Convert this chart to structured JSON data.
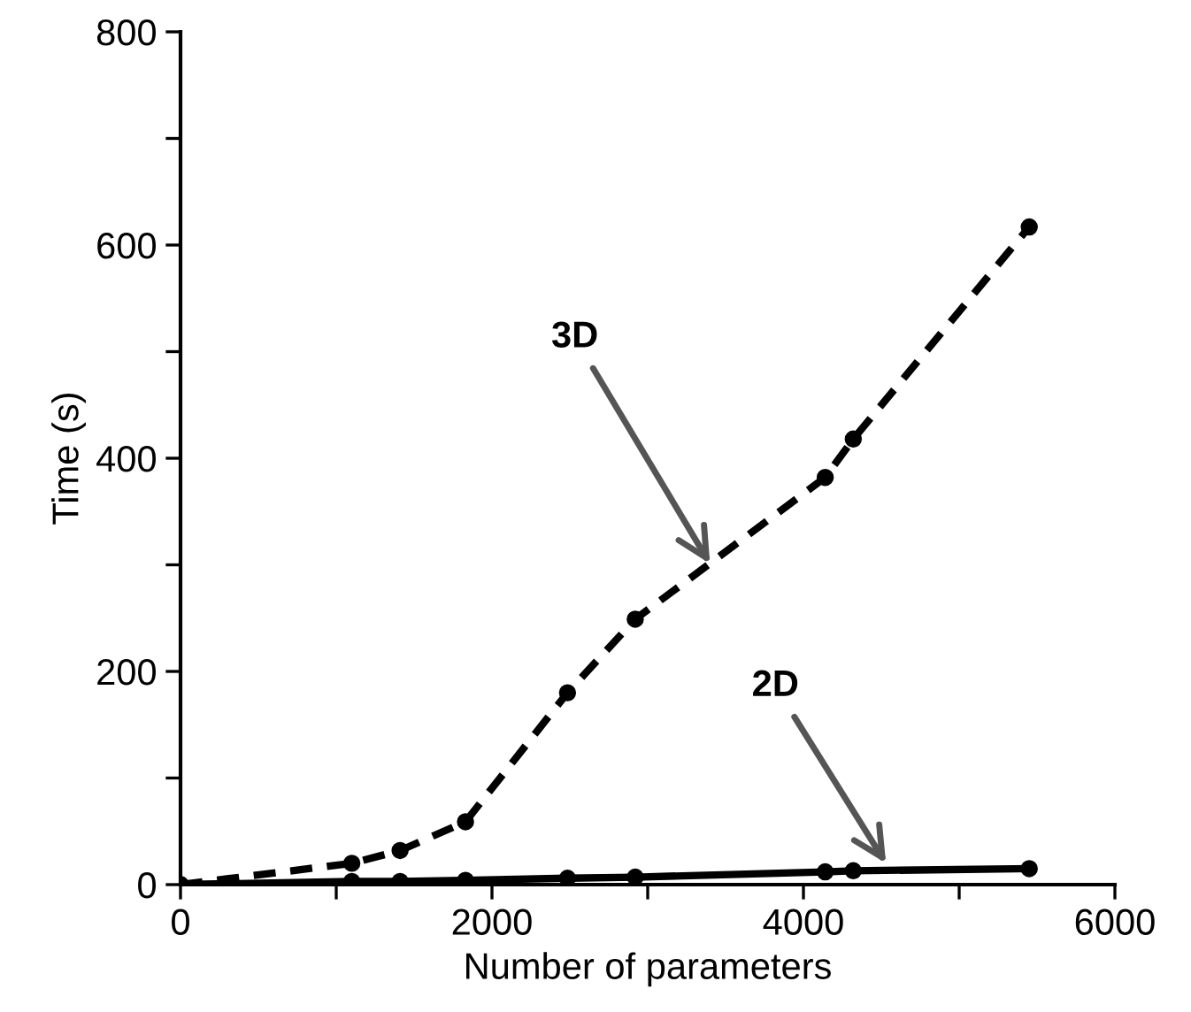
{
  "chart_data": {
    "type": "line",
    "xlabel": "Number of parameters",
    "ylabel": "Time (s)",
    "xlim": [
      0,
      6000
    ],
    "ylim": [
      0,
      800
    ],
    "xticks": [
      0,
      {
        "value": 1000,
        "label": null
      },
      2000,
      {
        "value": 3000,
        "label": null
      },
      4000,
      {
        "value": 5000,
        "label": null
      },
      6000
    ],
    "yticks": [
      0,
      {
        "value": 100,
        "label": null
      },
      200,
      {
        "value": 300,
        "label": null
      },
      400,
      {
        "value": 500,
        "label": null
      },
      600,
      {
        "value": 700,
        "label": null
      },
      800
    ],
    "grid": false,
    "legend": false,
    "marker": "circle",
    "series": [
      {
        "color": "#000000",
        "line_style": "dashed",
        "x": [
          0,
          1100,
          1410,
          1830,
          2485,
          2920,
          4140,
          4320,
          5450
        ],
        "values": [
          0,
          20,
          32,
          59,
          180,
          249,
          382,
          418,
          617
        ]
      },
      {
        "color": "#000000",
        "line_style": "solid",
        "x": [
          0,
          1100,
          1410,
          1830,
          2485,
          2920,
          4140,
          4320,
          5450
        ],
        "values": [
          0,
          3,
          3,
          4,
          6,
          7,
          12,
          13,
          15
        ]
      }
    ],
    "annotations": [
      {
        "text": "3D",
        "x": 3400,
        "y": 301
      },
      {
        "text": "2D",
        "x": 4530,
        "y": 20
      }
    ]
  }
}
